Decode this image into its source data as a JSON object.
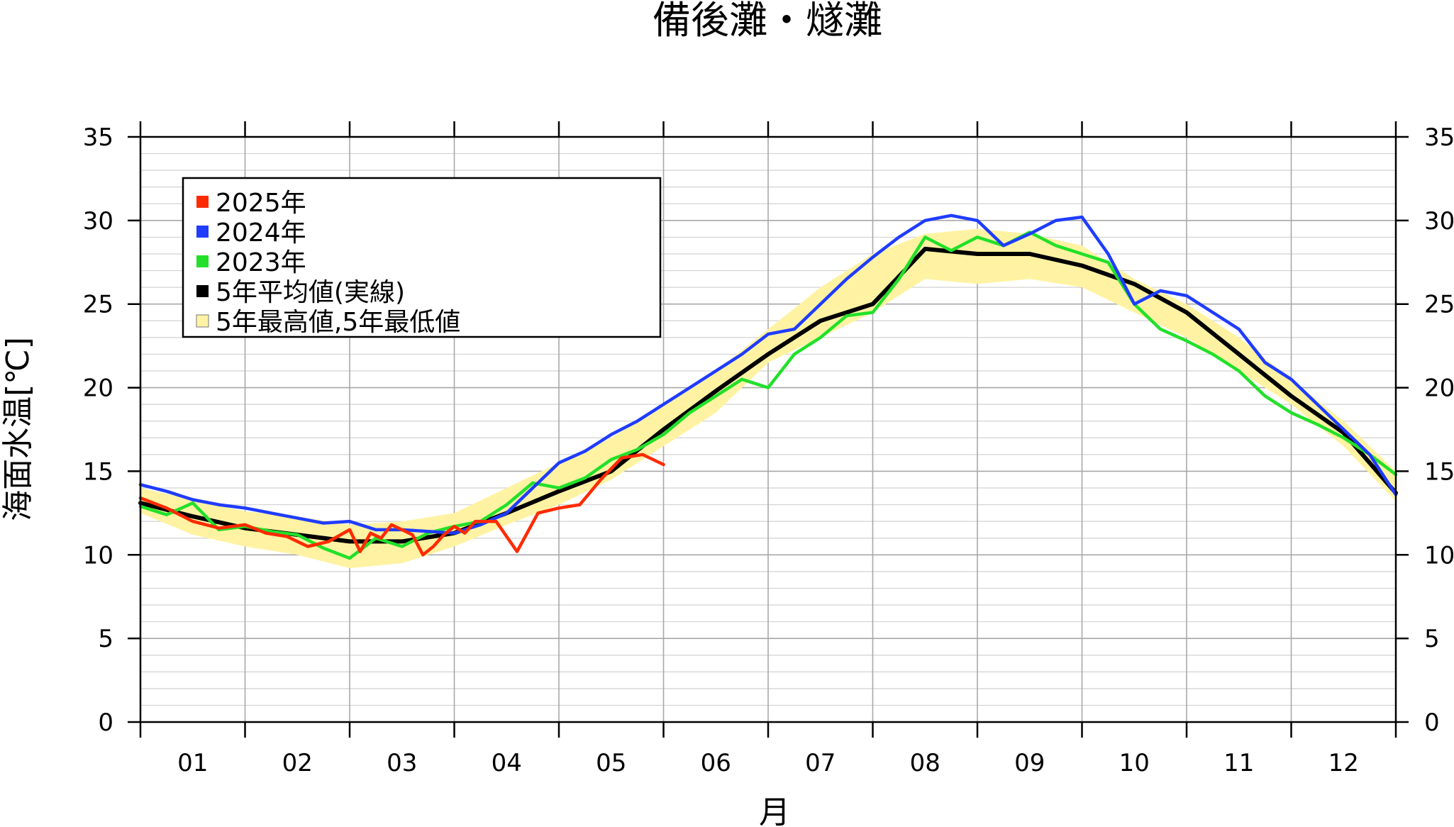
{
  "chart_data": {
    "type": "line",
    "title": "備後灘・燧灘",
    "xlabel": "月",
    "ylabel": "海面水温[℃]",
    "ylim": [
      0,
      35
    ],
    "y_ticks": [
      0,
      5,
      10,
      15,
      20,
      25,
      30,
      35
    ],
    "y_minor_step": 1,
    "x_range_months": [
      0,
      12
    ],
    "x_ticks": [
      "01",
      "02",
      "03",
      "04",
      "05",
      "06",
      "07",
      "08",
      "09",
      "10",
      "11",
      "12"
    ],
    "grid": true,
    "legend_position": "top-left",
    "legend": [
      {
        "key": "y2025",
        "label": "2025年",
        "color": "#ff2a00"
      },
      {
        "key": "y2024",
        "label": "2024年",
        "color": "#1f3cff"
      },
      {
        "key": "y2023",
        "label": "2023年",
        "color": "#22e02a"
      },
      {
        "key": "avg",
        "label": "5年平均値(実線)",
        "color": "#000000"
      },
      {
        "key": "band",
        "label": "5年最高値,5年最低値",
        "color": "#fff3a3"
      }
    ],
    "x_unit": "month (0 = 1月1日, 12 = 12月31日)",
    "series": [
      {
        "name": "5年最高値",
        "key": "band_high",
        "x": [
          0,
          0.5,
          1,
          1.5,
          2,
          2.5,
          3,
          3.5,
          4,
          4.5,
          5,
          5.5,
          6,
          6.5,
          7,
          7.5,
          8,
          8.5,
          9,
          9.5,
          10,
          10.5,
          11,
          11.5,
          12
        ],
        "y": [
          14.0,
          13.3,
          12.6,
          12.3,
          11.8,
          12.0,
          12.5,
          14.0,
          15.5,
          17.0,
          19.0,
          21.0,
          23.5,
          26.0,
          28.0,
          29.2,
          29.5,
          29.2,
          28.5,
          26.5,
          25.0,
          23.0,
          20.5,
          18.0,
          15.0
        ]
      },
      {
        "name": "5年最低値",
        "key": "band_low",
        "x": [
          0,
          0.5,
          1,
          1.5,
          2,
          2.5,
          3,
          3.5,
          4,
          4.5,
          5,
          5.5,
          6,
          6.5,
          7,
          7.5,
          8,
          8.5,
          9,
          9.5,
          10,
          10.5,
          11,
          11.5,
          12
        ],
        "y": [
          12.5,
          11.2,
          10.5,
          10.0,
          9.2,
          9.5,
          10.5,
          11.8,
          13.0,
          14.5,
          16.5,
          18.5,
          21.5,
          23.0,
          24.5,
          26.5,
          26.2,
          26.5,
          26.0,
          24.5,
          23.0,
          21.0,
          19.0,
          16.5,
          13.2
        ]
      },
      {
        "name": "5年平均値(実線)",
        "key": "avg",
        "x": [
          0,
          0.5,
          1,
          1.5,
          2,
          2.5,
          3,
          3.5,
          4,
          4.5,
          5,
          5.5,
          6,
          6.5,
          7,
          7.5,
          8,
          8.5,
          9,
          9.5,
          10,
          10.5,
          11,
          11.5,
          12
        ],
        "y": [
          13.1,
          12.3,
          11.6,
          11.2,
          10.8,
          10.8,
          11.3,
          12.5,
          13.8,
          15.0,
          17.5,
          19.8,
          22.0,
          24.0,
          25.0,
          28.3,
          28.0,
          28.0,
          27.3,
          26.2,
          24.5,
          22.0,
          19.5,
          17.3,
          13.7
        ]
      },
      {
        "name": "2023年",
        "key": "y2023",
        "x": [
          0,
          0.25,
          0.5,
          0.75,
          1,
          1.25,
          1.5,
          1.75,
          2,
          2.25,
          2.5,
          2.75,
          3,
          3.25,
          3.5,
          3.75,
          4,
          4.25,
          4.5,
          4.75,
          5,
          5.25,
          5.5,
          5.75,
          6,
          6.25,
          6.5,
          6.75,
          7,
          7.25,
          7.5,
          7.75,
          8,
          8.25,
          8.5,
          8.75,
          9,
          9.25,
          9.5,
          9.75,
          10,
          10.25,
          10.5,
          10.75,
          11,
          11.25,
          11.5,
          11.75,
          12
        ],
        "y": [
          12.9,
          12.4,
          13.1,
          11.5,
          11.7,
          11.4,
          11.2,
          10.4,
          9.8,
          11.0,
          10.5,
          11.3,
          11.7,
          12.0,
          13.0,
          14.3,
          14.0,
          14.6,
          15.7,
          16.3,
          17.2,
          18.5,
          19.5,
          20.5,
          20.0,
          22.0,
          23.0,
          24.3,
          24.5,
          26.5,
          29.0,
          28.2,
          29.0,
          28.5,
          29.3,
          28.5,
          28.0,
          27.5,
          25.0,
          23.5,
          22.8,
          22.0,
          21.0,
          19.5,
          18.5,
          17.8,
          17.0,
          16.0,
          14.8
        ]
      },
      {
        "name": "2024年",
        "key": "y2024",
        "x": [
          0,
          0.25,
          0.5,
          0.75,
          1,
          1.25,
          1.5,
          1.75,
          2,
          2.25,
          2.5,
          2.75,
          3,
          3.25,
          3.5,
          3.75,
          4,
          4.25,
          4.5,
          4.75,
          5,
          5.25,
          5.5,
          5.75,
          6,
          6.25,
          6.5,
          6.75,
          7,
          7.25,
          7.5,
          7.75,
          8,
          8.25,
          8.5,
          8.75,
          9,
          9.25,
          9.5,
          9.75,
          10,
          10.25,
          10.5,
          10.75,
          11,
          11.25,
          11.5,
          11.75,
          12
        ],
        "y": [
          14.2,
          13.8,
          13.3,
          13.0,
          12.8,
          12.5,
          12.2,
          11.9,
          12.0,
          11.5,
          11.5,
          11.4,
          11.3,
          11.8,
          12.5,
          14.0,
          15.5,
          16.2,
          17.2,
          18.0,
          19.0,
          20.0,
          21.0,
          22.0,
          23.2,
          23.5,
          25.0,
          26.5,
          27.8,
          29.0,
          30.0,
          30.3,
          30.0,
          28.5,
          29.2,
          30.0,
          30.2,
          28.0,
          25.0,
          25.8,
          25.5,
          24.5,
          23.5,
          21.5,
          20.5,
          19.0,
          17.5,
          16.0,
          13.6
        ]
      },
      {
        "name": "2025年",
        "key": "y2025",
        "x": [
          0,
          0.25,
          0.5,
          0.75,
          1,
          1.2,
          1.4,
          1.6,
          1.8,
          2,
          2.1,
          2.2,
          2.3,
          2.4,
          2.5,
          2.6,
          2.7,
          2.8,
          2.9,
          3.0,
          3.1,
          3.2,
          3.4,
          3.6,
          3.8,
          4.0,
          4.2,
          4.4,
          4.6,
          4.8,
          5.0
        ],
        "y": [
          13.4,
          12.8,
          12.0,
          11.6,
          11.8,
          11.3,
          11.1,
          10.5,
          10.8,
          11.5,
          10.2,
          11.3,
          11.0,
          11.8,
          11.5,
          11.2,
          10.0,
          10.5,
          11.2,
          11.7,
          11.3,
          12.0,
          12.0,
          10.2,
          12.5,
          12.8,
          13.0,
          14.5,
          15.8,
          16.0,
          15.4
        ]
      }
    ]
  }
}
